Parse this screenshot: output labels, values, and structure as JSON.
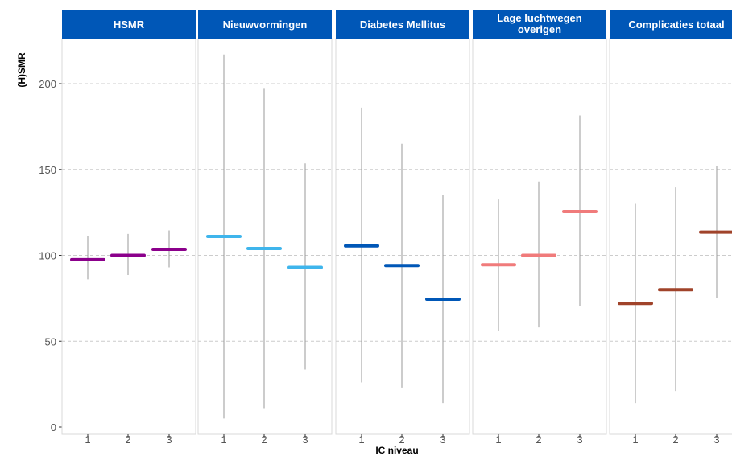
{
  "chart_data": {
    "type": "errorbar",
    "xlabel": "IC niveau",
    "ylabel": "(H)SMR",
    "ylim": [
      0,
      225
    ],
    "yticks": [
      0,
      50,
      100,
      150,
      200
    ],
    "grid": "horizontal dashed",
    "categories": [
      "1",
      "2",
      "3"
    ],
    "panels": [
      {
        "title": "HSMR",
        "color": "#8B008B",
        "points": [
          {
            "x": "1",
            "value": 97.5,
            "low": 86,
            "high": 111
          },
          {
            "x": "2",
            "value": 100,
            "low": 88.5,
            "high": 112.5
          },
          {
            "x": "3",
            "value": 103.5,
            "low": 93,
            "high": 114.5
          }
        ]
      },
      {
        "title": "Nieuwvormingen",
        "color": "#3FB5EC",
        "points": [
          {
            "x": "1",
            "value": 111,
            "low": 5,
            "high": 217
          },
          {
            "x": "2",
            "value": 104,
            "low": 11,
            "high": 197
          },
          {
            "x": "3",
            "value": 93,
            "low": 33.5,
            "high": 153.5
          }
        ]
      },
      {
        "title": "Diabetes Mellitus",
        "color": "#0057B7",
        "points": [
          {
            "x": "1",
            "value": 105.5,
            "low": 26,
            "high": 186
          },
          {
            "x": "2",
            "value": 94,
            "low": 23,
            "high": 165
          },
          {
            "x": "3",
            "value": 74.5,
            "low": 14,
            "high": 135
          }
        ]
      },
      {
        "title_lines": [
          "Lage luchtwegen",
          "overigen"
        ],
        "color": "#F07B7B",
        "points": [
          {
            "x": "1",
            "value": 94.5,
            "low": 56,
            "high": 132.5
          },
          {
            "x": "2",
            "value": 100,
            "low": 58,
            "high": 143
          },
          {
            "x": "3",
            "value": 125.5,
            "low": 70.5,
            "high": 181.5
          }
        ]
      },
      {
        "title": "Complicaties totaal",
        "color": "#A0432A",
        "points": [
          {
            "x": "1",
            "value": 72,
            "low": 14,
            "high": 130
          },
          {
            "x": "2",
            "value": 80,
            "low": 21,
            "high": 139.5
          },
          {
            "x": "3",
            "value": 113.5,
            "low": 75,
            "high": 152
          }
        ]
      }
    ],
    "strip_color": "#0057B7",
    "gridline_color": "#CCCCCC",
    "errorbar_color": "#999999"
  }
}
